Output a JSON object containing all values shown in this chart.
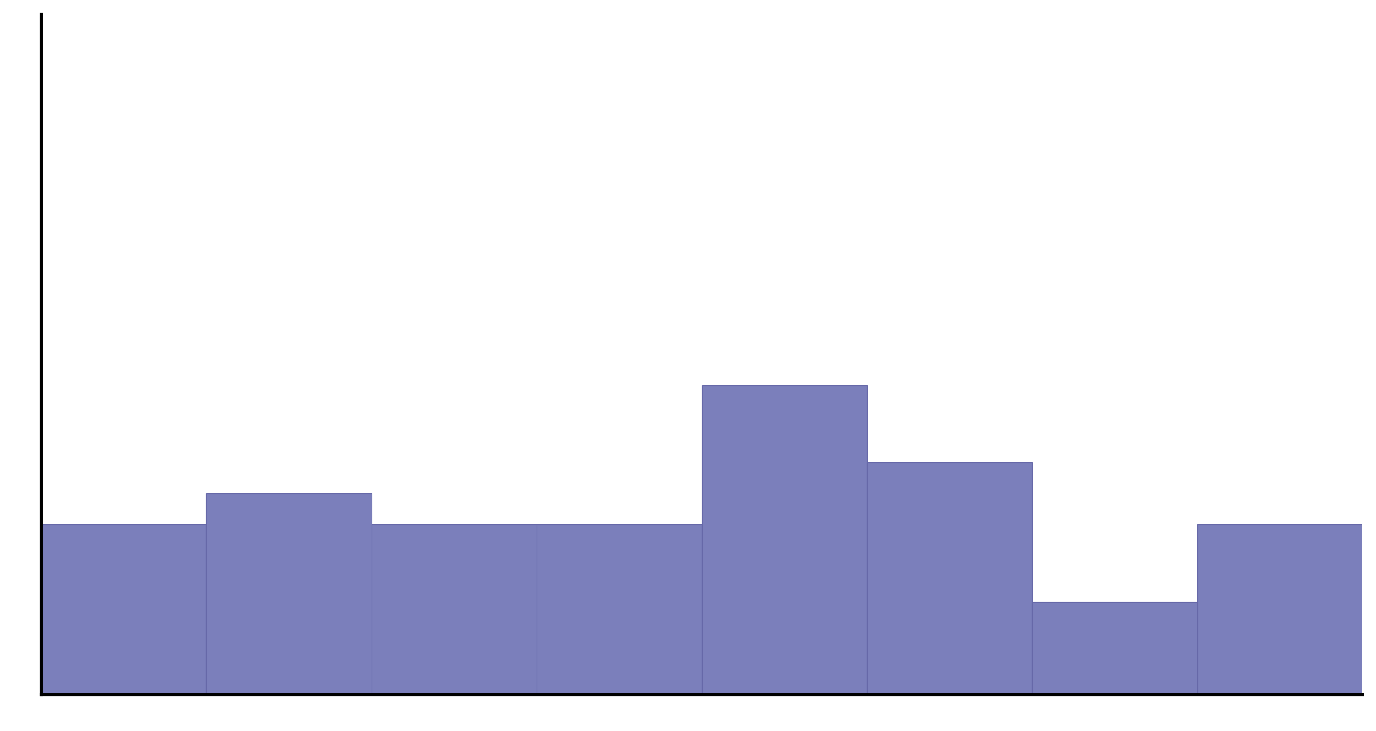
{
  "bar_values": [
    55,
    65,
    55,
    55,
    100,
    75,
    30,
    55
  ],
  "bar_color": "#7b7fbb",
  "bar_edgecolor": "#6668a8",
  "background_color": "#ffffff",
  "ylim": [
    0,
    220
  ],
  "xlim": [
    0,
    8
  ],
  "figsize": [
    20.03,
    10.64
  ],
  "dpi": 100,
  "spine_linewidth": 3.0
}
